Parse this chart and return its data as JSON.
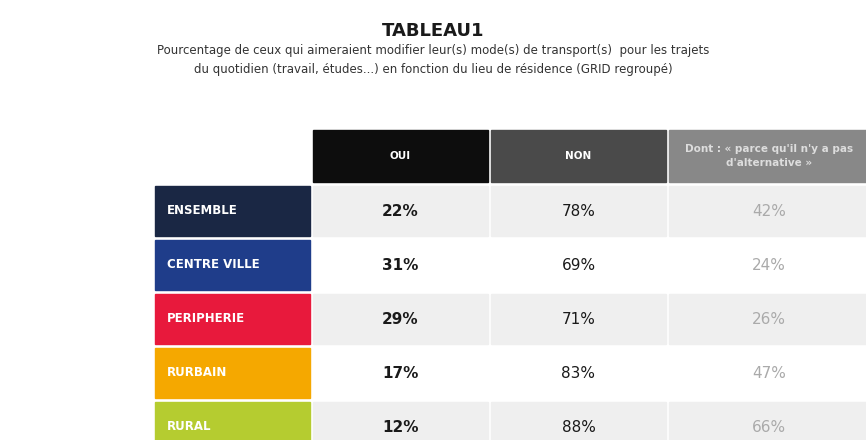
{
  "title": "TABLEAU1",
  "subtitle": "Pourcentage de ceux qui aimeraient modifier leur(s) mode(s) de transport(s)  pour les trajets\ndu quotidien (travail, études...) en fonction du lieu de résidence (GRID regroupé)",
  "col_headers": [
    "OUI",
    "NON",
    "Dont : « parce qu'il n'y a pas\nd'alternative »"
  ],
  "col_header_colors": [
    "#0d0d0d",
    "#4a4a4a",
    "#888888"
  ],
  "col_header_text_colors": [
    "#ffffff",
    "#ffffff",
    "#dddddd"
  ],
  "rows": [
    {
      "label": "ENSEMBLE",
      "label_bg": "#1a2744",
      "label_fg": "#ffffff",
      "oui": "22%",
      "non": "78%",
      "dont": "42%"
    },
    {
      "label": "CENTRE VILLE",
      "label_bg": "#1f3d8a",
      "label_fg": "#ffffff",
      "oui": "31%",
      "non": "69%",
      "dont": "24%"
    },
    {
      "label": "PERIPHERIE",
      "label_bg": "#e8193c",
      "label_fg": "#ffffff",
      "oui": "29%",
      "non": "71%",
      "dont": "26%"
    },
    {
      "label": "RURBAIN",
      "label_bg": "#f5a800",
      "label_fg": "#ffffff",
      "oui": "17%",
      "non": "83%",
      "dont": "47%"
    },
    {
      "label": "RURAL",
      "label_bg": "#b5cc30",
      "label_fg": "#ffffff",
      "oui": "12%",
      "non": "88%",
      "dont": "66%"
    }
  ],
  "oui_fg": "#1a1a1a",
  "non_fg": "#1a1a1a",
  "dont_fg": "#aaaaaa",
  "row_bg": [
    "#efefef",
    "#ffffff",
    "#efefef",
    "#ffffff",
    "#efefef"
  ],
  "figsize": [
    8.66,
    4.4
  ],
  "dpi": 100
}
